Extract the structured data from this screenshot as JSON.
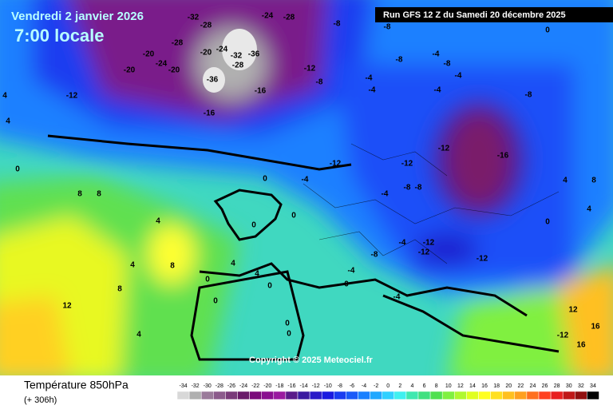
{
  "header": {
    "date": "Vendredi 2 janvier 2026",
    "time": "7:00 locale",
    "run": "Run GFS 12 Z du Samedi 20 décembre 2025"
  },
  "copyright": "Copyright © 2025 Meteociel.fr",
  "legend": {
    "title": "Température 850hPa",
    "subtitle": "(+ 306h)",
    "ticks": [
      -34,
      -32,
      -30,
      -28,
      -26,
      -24,
      -22,
      -20,
      -18,
      -16,
      -14,
      -12,
      -10,
      -8,
      -6,
      -4,
      -2,
      0,
      2,
      4,
      6,
      8,
      10,
      12,
      14,
      16,
      18,
      20,
      22,
      24,
      26,
      28,
      30,
      32,
      34
    ],
    "colors": [
      "#d8d8d8",
      "#b0b0b0",
      "#9a7a9a",
      "#8c5a8c",
      "#7a3a7a",
      "#6a1a6a",
      "#7a0a7a",
      "#8a1090",
      "#9a1aa0",
      "#5a1a8a",
      "#3a1aa0",
      "#2a1ac8",
      "#1a1ae0",
      "#1a3cf0",
      "#1a5af8",
      "#1a80ff",
      "#20a8ff",
      "#30d0ff",
      "#40f0f0",
      "#40e8b0",
      "#40e080",
      "#50e050",
      "#80f040",
      "#b0f830",
      "#e0ff20",
      "#ffff20",
      "#ffe020",
      "#ffc020",
      "#ffa020",
      "#ff7020",
      "#ff4020",
      "#e82020",
      "#c01818",
      "#901010",
      "#000000"
    ]
  },
  "contour_labels": [
    -32,
    -28,
    -24,
    -28,
    -28,
    -20,
    -24,
    -20,
    -20,
    -20,
    -24,
    -28,
    -32,
    -36,
    -36,
    -16,
    -16,
    -12,
    -8,
    -8,
    -12,
    -8,
    -4,
    -4,
    -8,
    -4,
    -8,
    -4,
    -4,
    -8,
    -12,
    -16,
    -12,
    -12,
    -4,
    -4,
    -8,
    -8,
    0,
    0,
    0,
    -4,
    -12,
    -12,
    -12,
    -8,
    -4,
    0,
    -4,
    4,
    4,
    0,
    0,
    0,
    0,
    0,
    4,
    8,
    8,
    4,
    8,
    12,
    8,
    4,
    0,
    4,
    4,
    12,
    16,
    16,
    -12,
    0,
    4,
    8,
    4,
    0
  ]
}
